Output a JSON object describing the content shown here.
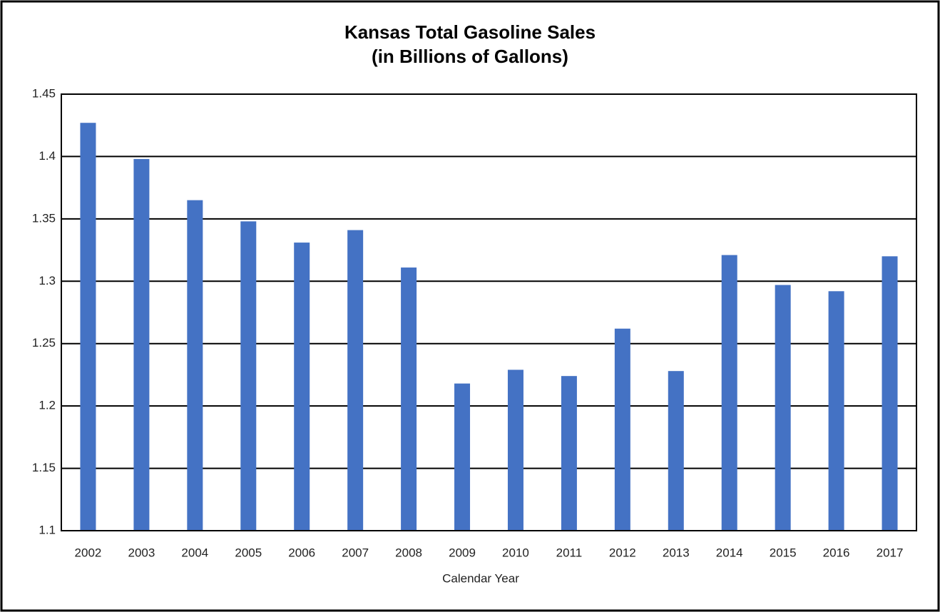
{
  "chart_data": {
    "type": "bar",
    "title": [
      "Kansas Total Gasoline Sales",
      "(in Billions of Gallons)"
    ],
    "x_label": "Calendar Year",
    "categories": [
      "2002",
      "2003",
      "2004",
      "2005",
      "2006",
      "2007",
      "2008",
      "2009",
      "2010",
      "2011",
      "2012",
      "2013",
      "2014",
      "2015",
      "2016",
      "2017"
    ],
    "values": [
      1.427,
      1.398,
      1.365,
      1.348,
      1.331,
      1.341,
      1.311,
      1.218,
      1.229,
      1.224,
      1.262,
      1.228,
      1.321,
      1.297,
      1.292,
      1.32
    ],
    "color": "#4472c4",
    "ylim": [
      1.1,
      1.45
    ],
    "yticks": [
      1.1,
      1.15,
      1.2,
      1.25,
      1.3,
      1.35,
      1.4,
      1.45
    ],
    "grid": true
  }
}
